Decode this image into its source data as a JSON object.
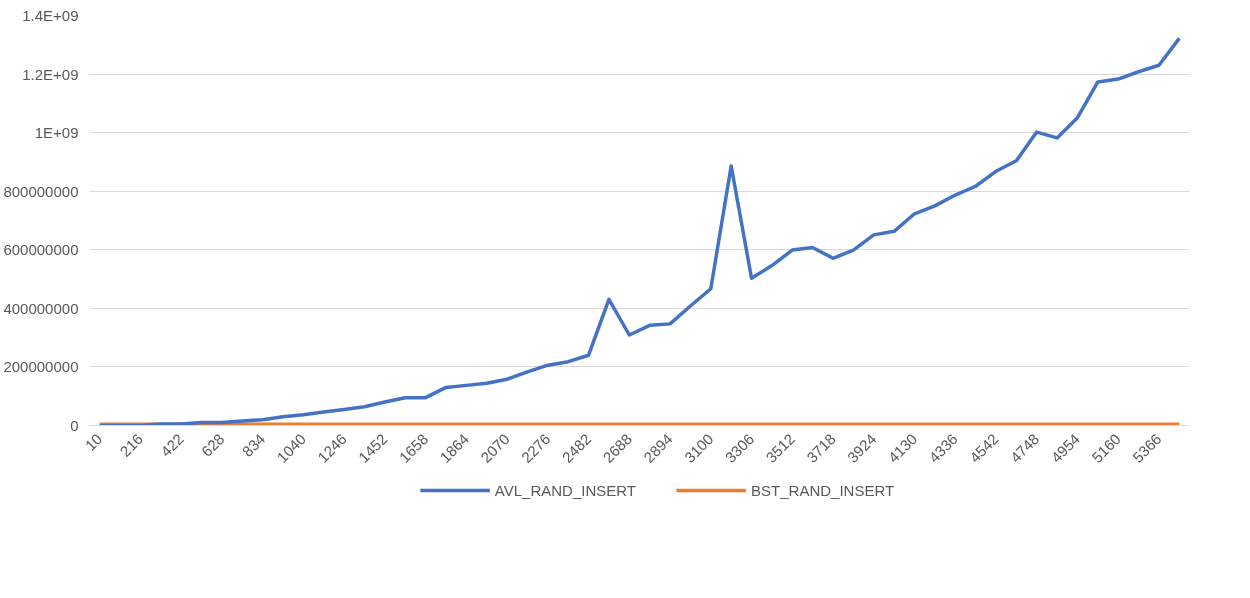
{
  "chart_data": {
    "type": "line",
    "categories": [
      "10",
      null,
      "216",
      null,
      "422",
      null,
      "628",
      null,
      "834",
      null,
      "1040",
      null,
      "1246",
      null,
      "1452",
      null,
      "1658",
      null,
      "1864",
      null,
      "2070",
      null,
      "2276",
      null,
      "2482",
      null,
      "2688",
      null,
      "2894",
      null,
      "3100",
      null,
      "3306",
      null,
      "3512",
      null,
      "3718",
      null,
      "3924",
      null,
      "4130",
      null,
      "4336",
      null,
      "4542",
      null,
      "4748",
      null,
      "4954",
      null,
      "5160",
      null,
      "5366",
      null
    ],
    "series": [
      {
        "name": "AVL_RAND_INSERT",
        "color": "#4472c4",
        "values": [
          0,
          0,
          0,
          5000000,
          5000000,
          10000000,
          10000000,
          15000000,
          20000000,
          30000000,
          37000000,
          46000000,
          55000000,
          64000000,
          80000000,
          95000000,
          95000000,
          130000000,
          137000000,
          144000000,
          158000000,
          183000000,
          206000000,
          218000000,
          240000000,
          431000000,
          309000000,
          342000000,
          347000000,
          408000000,
          467000000,
          886000000,
          503000000,
          546000000,
          599000000,
          608000000,
          571000000,
          599000000,
          651000000,
          663000000,
          723000000,
          750000000,
          787000000,
          817000000,
          868000000,
          904000000,
          1002000000,
          982000000,
          1051000000,
          1173000000,
          1183000000,
          1208000000,
          1230000000,
          1322000000
        ]
      },
      {
        "name": "BST_RAND_INSERT",
        "color": "#ed7d31",
        "values": [
          0,
          0,
          0,
          0,
          0,
          0,
          0,
          0,
          0,
          0,
          0,
          0,
          0,
          0,
          0,
          0,
          0,
          0,
          0,
          0,
          0,
          0,
          0,
          0,
          0,
          0,
          0,
          0,
          0,
          0,
          0,
          0,
          0,
          0,
          0,
          0,
          0,
          0,
          0,
          0,
          0,
          0,
          0,
          0,
          0,
          0,
          0,
          0,
          0,
          0,
          0,
          0,
          0,
          0
        ]
      }
    ],
    "ylim": [
      0,
      1400000000
    ],
    "yticks": [
      0,
      200000000,
      400000000,
      600000000,
      800000000,
      {
        "value": 1000000000,
        "label": "1E+09"
      },
      {
        "value": 1200000000,
        "label": "1.2E+09"
      },
      {
        "value": 1400000000,
        "label": "1.4E+09"
      }
    ],
    "grid": "y",
    "legend": "bottom"
  }
}
